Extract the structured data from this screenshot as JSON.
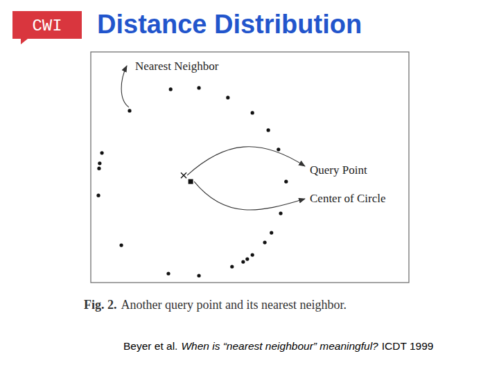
{
  "slide": {
    "logo": "CWI",
    "title": "Distance Distribution",
    "caption_label": "Fig. 2.",
    "caption": "Another query point and its nearest neighbor.",
    "citation_authors": "Beyer et al.",
    "citation_title": "When is “nearest neighbour” meaningful?",
    "citation_venue": "ICDT 1999"
  },
  "chart_data": {
    "type": "scatter",
    "xlim": [
      0,
      100
    ],
    "ylim": [
      0,
      100
    ],
    "tick_labels": false,
    "grid": false,
    "series": [
      {
        "color": "#111111",
        "marker": "dot",
        "x": [
          25.1,
          34.0,
          43.1,
          50.8,
          55.8,
          59.0,
          61.4,
          59.7,
          56.8,
          54.7,
          50.8,
          49.2,
          47.9,
          44.4,
          34.0,
          24.4,
          9.6,
          2.4,
          2.6,
          2.8,
          3.5
        ],
        "values": [
          83.8,
          84.4,
          80.2,
          73.6,
          66.1,
          57.7,
          43.8,
          30.0,
          21.6,
          17.4,
          12.0,
          10.2,
          9.0,
          6.9,
          3.0,
          3.9,
          16.2,
          37.8,
          49.5,
          51.7,
          56.2
        ]
      },
      {
        "name": "Nearest Neighbor",
        "color": "#111111",
        "marker": "dot",
        "x": [
          12.2
        ],
        "values": [
          74.5
        ]
      },
      {
        "name": "Query Point",
        "color": "#111111",
        "marker": "x",
        "x": [
          29.2
        ],
        "values": [
          46.5
        ]
      },
      {
        "name": "Center of Circle",
        "color": "#111111",
        "marker": "square",
        "x": [
          31.4
        ],
        "values": [
          43.8
        ]
      }
    ]
  }
}
